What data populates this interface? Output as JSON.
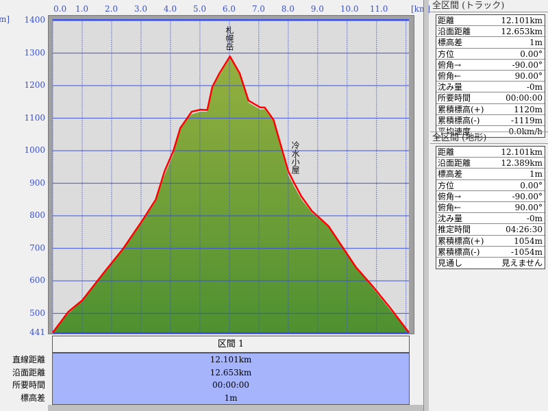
{
  "axis": {
    "y_unit": "m]",
    "x_unit": "[km]",
    "x_ticks": [
      "0.0",
      "1.0",
      "2.0",
      "3.0",
      "4.0",
      "5.0",
      "6.0",
      "7.0",
      "8.0",
      "9.0",
      "10.0",
      "11.0"
    ],
    "y_ticks": [
      "1400",
      "1300",
      "1200",
      "1100",
      "1000",
      "900",
      "800",
      "700",
      "600",
      "500",
      "441"
    ]
  },
  "chart_data": {
    "type": "area",
    "xlabel": "[km]",
    "ylabel": "[m]",
    "xlim": [
      0,
      12.1
    ],
    "ylim": [
      441,
      1400
    ],
    "grid": true,
    "colors": {
      "track": "#ff0000",
      "terrain_top": "#95b040",
      "terrain_bottom": "#4e9030",
      "background": "#dcdcdc",
      "grid": "#3a4fe0"
    },
    "track": {
      "x": [
        0,
        0.53,
        1.0,
        1.7,
        2.4,
        3.07,
        3.5,
        3.8,
        4.1,
        4.33,
        4.72,
        5.02,
        5.25,
        5.42,
        5.65,
        6.02,
        6.35,
        6.65,
        7.05,
        7.2,
        7.5,
        7.8,
        8.0,
        8.2,
        8.45,
        8.8,
        9.37,
        10.3,
        10.9,
        11.47,
        12.1
      ],
      "y": [
        441,
        505,
        540,
        621,
        700,
        789,
        850,
        937,
        1000,
        1069,
        1120,
        1126,
        1125,
        1196,
        1236,
        1290,
        1238,
        1154,
        1133,
        1133,
        1095,
        1000,
        937,
        901,
        859,
        815,
        768,
        642,
        580,
        516,
        441
      ]
    },
    "terrain": {
      "x": [
        0,
        0.53,
        1.0,
        1.7,
        2.4,
        3.07,
        3.5,
        3.8,
        4.1,
        4.33,
        4.72,
        5.02,
        5.25,
        5.42,
        5.65,
        6.02,
        6.35,
        6.65,
        7.05,
        7.2,
        7.5,
        7.8,
        8.0,
        8.2,
        8.45,
        8.8,
        9.37,
        10.3,
        10.9,
        11.47,
        12.1
      ],
      "y": [
        441,
        500,
        538,
        625,
        700,
        785,
        845,
        925,
        990,
        1075,
        1112,
        1120,
        1120,
        1190,
        1230,
        1285,
        1232,
        1148,
        1126,
        1128,
        1090,
        990,
        925,
        890,
        850,
        810,
        765,
        640,
        575,
        510,
        441
      ]
    },
    "annotations": [
      {
        "text": "札幌岳",
        "x": 6.0
      },
      {
        "text": "冷水小屋",
        "x": 8.1
      }
    ]
  },
  "section": {
    "title": "区間 1",
    "labels": [
      "直線距離",
      "沿面距離",
      "所要時間",
      "標高差"
    ],
    "values": [
      "12.101km",
      "12.653km",
      "00:00:00",
      "1m"
    ]
  },
  "track_panel": {
    "title": "全区間 (トラック)",
    "rows": [
      [
        "距離",
        "12.101km"
      ],
      [
        "沿面距離",
        "12.653km"
      ],
      [
        "標高差",
        "1m"
      ],
      [
        "方位",
        "0.00°"
      ],
      [
        "俯角→",
        "-90.00°"
      ],
      [
        "俯角←",
        "90.00°"
      ],
      [
        "沈み量",
        "-0m"
      ],
      [
        "所要時間",
        "00:00:00"
      ],
      [
        "累積標高(+)",
        "1120m"
      ],
      [
        "累積標高(-)",
        "-1119m"
      ],
      [
        "平均速度",
        "0.0km/h"
      ]
    ]
  },
  "terrain_panel": {
    "title": "全区間 (地形)",
    "rows": [
      [
        "距離",
        "12.101km"
      ],
      [
        "沿面距離",
        "12.389km"
      ],
      [
        "標高差",
        "1m"
      ],
      [
        "方位",
        "0.00°"
      ],
      [
        "俯角→",
        "-90.00°"
      ],
      [
        "俯角←",
        "90.00°"
      ],
      [
        "沈み量",
        "-0m"
      ],
      [
        "推定時間",
        "04:26:30"
      ],
      [
        "累積標高(+)",
        "1054m"
      ],
      [
        "累積標高(-)",
        "-1054m"
      ],
      [
        "見通し",
        "見えません"
      ]
    ]
  }
}
